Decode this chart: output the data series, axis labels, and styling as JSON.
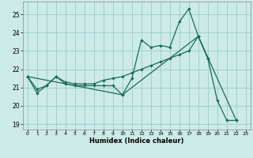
{
  "xlabel": "Humidex (Indice chaleur)",
  "background_color": "#cceae7",
  "grid_color": "#99cccc",
  "line_color": "#1a6b5a",
  "xlim": [
    -0.5,
    23.5
  ],
  "ylim": [
    18.7,
    25.7
  ],
  "yticks": [
    19,
    20,
    21,
    22,
    23,
    24,
    25
  ],
  "xticks": [
    0,
    1,
    2,
    3,
    4,
    5,
    6,
    7,
    8,
    9,
    10,
    11,
    12,
    13,
    14,
    15,
    16,
    17,
    18,
    19,
    20,
    21,
    22,
    23
  ],
  "series1_x": [
    0,
    1,
    2,
    3,
    4,
    5,
    6,
    7,
    8,
    9,
    10,
    11,
    12,
    13,
    14,
    15,
    16,
    17,
    18,
    19,
    20,
    21,
    22
  ],
  "series1_y": [
    21.6,
    20.7,
    21.1,
    21.6,
    21.2,
    21.1,
    21.1,
    21.1,
    21.1,
    21.1,
    20.6,
    21.5,
    23.6,
    23.2,
    23.3,
    23.2,
    24.6,
    25.3,
    23.8,
    22.6,
    20.3,
    19.2,
    19.2
  ],
  "series2_x": [
    0,
    1,
    2,
    3,
    4,
    5,
    6,
    7,
    8,
    9,
    10,
    11,
    12,
    13,
    14,
    15,
    16,
    17,
    18,
    19
  ],
  "series2_y": [
    21.6,
    20.9,
    21.1,
    21.6,
    21.3,
    21.2,
    21.2,
    21.2,
    21.4,
    21.5,
    21.6,
    21.8,
    22.0,
    22.2,
    22.4,
    22.6,
    22.8,
    23.0,
    23.8,
    22.6
  ],
  "series3_x": [
    0,
    10,
    18,
    22
  ],
  "series3_y": [
    21.6,
    20.6,
    23.8,
    19.2
  ]
}
